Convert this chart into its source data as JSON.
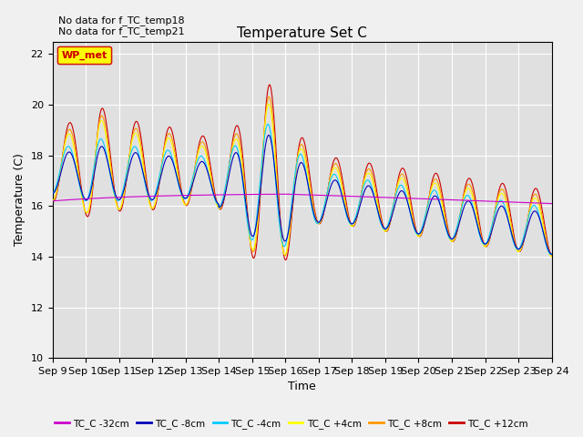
{
  "title": "Temperature Set C",
  "xlabel": "Time",
  "ylabel": "Temperature (C)",
  "annotation_lines": [
    "No data for f_TC_temp18",
    "No data for f_TC_temp21"
  ],
  "legend_label": "WP_met",
  "ylim": [
    10,
    22.5
  ],
  "xlim": [
    0,
    15
  ],
  "yticks": [
    10,
    12,
    14,
    16,
    18,
    20,
    22
  ],
  "xtick_labels": [
    "Sep 9",
    "Sep 10",
    "Sep 11",
    "Sep 12",
    "Sep 13",
    "Sep 14",
    "Sep 15",
    "Sep 16",
    "Sep 17",
    "Sep 18",
    "Sep 19",
    "Sep 20",
    "Sep 21",
    "Sep 22",
    "Sep 23",
    "Sep 24"
  ],
  "series_colors": [
    "#cc00cc",
    "#0000bb",
    "#00ccff",
    "#ffff00",
    "#ff9900",
    "#cc0000"
  ],
  "series_labels": [
    "TC_C -32cm",
    "TC_C -8cm",
    "TC_C -4cm",
    "TC_C +4cm",
    "TC_C +8cm",
    "TC_C +12cm"
  ],
  "fig_facecolor": "#f0f0f0",
  "ax_facecolor": "#e0e0e0",
  "grid_color": "#ffffff",
  "title_color": "#000000",
  "wp_box_facecolor": "#ffff00",
  "wp_box_edgecolor": "#cc0000",
  "wp_text_color": "#cc0000"
}
